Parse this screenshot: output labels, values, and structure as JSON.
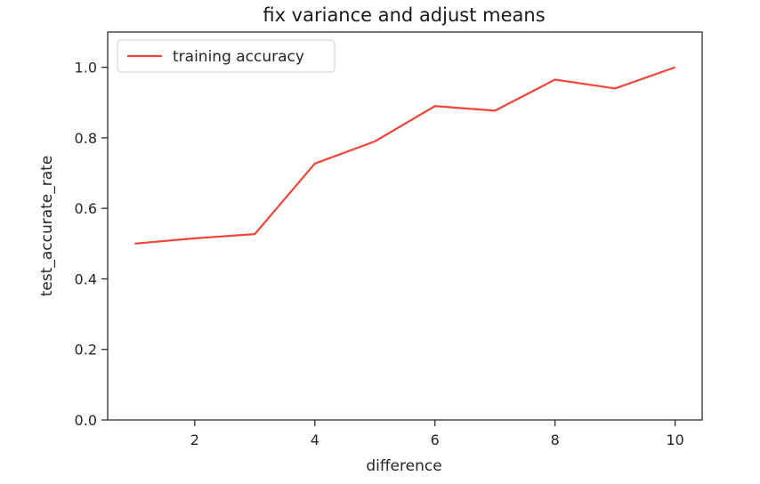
{
  "chart_data": {
    "type": "line",
    "title": "fix variance and adjust means",
    "xlabel": "difference",
    "ylabel": "test_accurate_rate",
    "xlim": [
      0.55,
      10.45
    ],
    "ylim": [
      0.0,
      1.1
    ],
    "xticks": [
      2,
      4,
      6,
      8,
      10
    ],
    "yticks": [
      0.0,
      0.2,
      0.4,
      0.6,
      0.8,
      1.0
    ],
    "xtick_labels": [
      "2",
      "4",
      "6",
      "8",
      "10"
    ],
    "ytick_labels": [
      "0.0",
      "0.2",
      "0.4",
      "0.6",
      "0.8",
      "1.0"
    ],
    "grid": false,
    "legend_position": "upper-left",
    "series": [
      {
        "name": "training accuracy",
        "color": "#f0453a",
        "x": [
          1,
          2,
          3,
          4,
          5,
          6,
          7,
          8,
          9,
          10
        ],
        "y": [
          0.5,
          0.515,
          0.527,
          0.727,
          0.79,
          0.89,
          0.877,
          0.965,
          0.94,
          1.0
        ]
      }
    ]
  }
}
